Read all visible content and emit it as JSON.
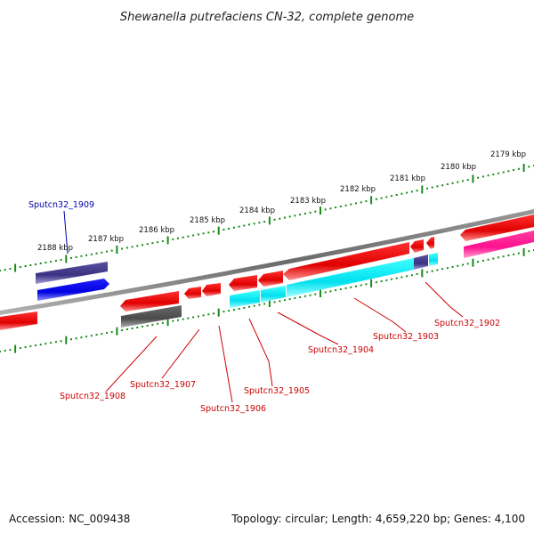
{
  "title": "Shewanella putrefaciens CN-32, complete genome",
  "tick_labels": [
    "2188 kbp",
    "2187 kbp",
    "2186 kbp",
    "2185 kbp",
    "2184 kbp",
    "2183 kbp",
    "2182 kbp",
    "2181 kbp",
    "2180 kbp",
    "2179 kbp"
  ],
  "genes": [
    {
      "label": "Sputcn32_1909",
      "color": "#0000aa"
    },
    {
      "label": "Sputcn32_1908",
      "color": "#cc0000"
    },
    {
      "label": "Sputcn32_1907",
      "color": "#cc0000"
    },
    {
      "label": "Sputcn32_1906",
      "color": "#cc0000"
    },
    {
      "label": "Sputcn32_1905",
      "color": "#cc0000"
    },
    {
      "label": "Sputcn32_1904",
      "color": "#cc0000"
    },
    {
      "label": "Sputcn32_1903",
      "color": "#cc0000"
    },
    {
      "label": "Sputcn32_1902",
      "color": "#cc0000"
    }
  ],
  "footer": {
    "accession": "Accession: NC_009438",
    "summary": "Topology: circular; Length: 4,659,220 bp; Genes: 4,100"
  },
  "colors": {
    "backbone": "#808080",
    "cds_red": "#ee0000",
    "cds_blue": "#0000ee",
    "cds_dark_blue": "#463c8c",
    "cds_grey": "#555555",
    "cds_cyan": "#00e5ee",
    "cds_pink": "#ff1493",
    "tick_green": "#1a8a1a",
    "label_blue": "#0000aa",
    "label_red": "#cc0000"
  }
}
